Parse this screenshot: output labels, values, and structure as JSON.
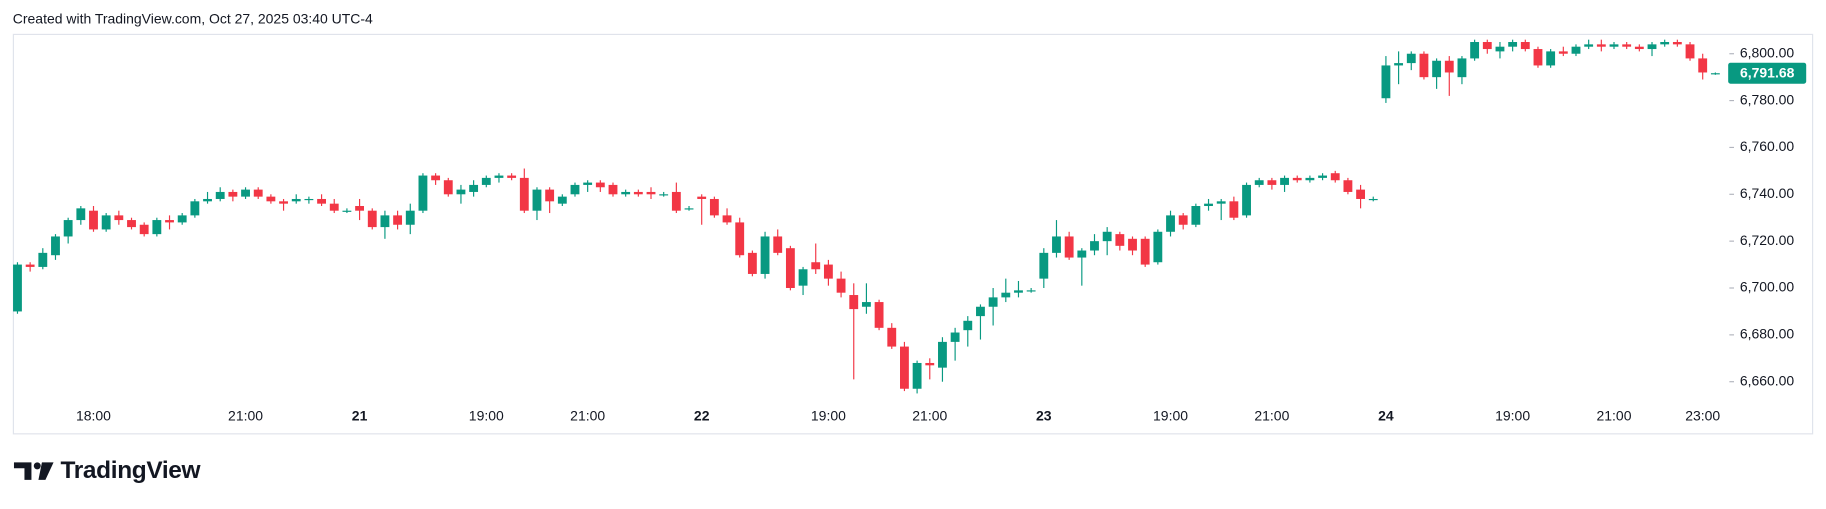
{
  "header": "Created with TradingView.com, Oct 27, 2025 03:40 UTC-4",
  "brand": "TradingView",
  "chart_data": {
    "type": "candlestick",
    "up_color": "#089981",
    "down_color": "#f23645",
    "categories": [
      null,
      null,
      null,
      null,
      null,
      null,
      "18:00",
      null,
      null,
      null,
      null,
      null,
      null,
      null,
      null,
      null,
      null,
      null,
      "21:00",
      null,
      null,
      null,
      null,
      null,
      null,
      null,
      null,
      "21",
      null,
      null,
      null,
      null,
      null,
      null,
      null,
      null,
      null,
      "19:00",
      null,
      null,
      null,
      null,
      null,
      null,
      null,
      "21:00",
      null,
      null,
      null,
      null,
      null,
      null,
      null,
      null,
      "22",
      null,
      null,
      null,
      null,
      null,
      null,
      null,
      null,
      null,
      "19:00",
      null,
      null,
      null,
      null,
      null,
      null,
      null,
      "21:00",
      null,
      null,
      null,
      null,
      null,
      null,
      null,
      null,
      "23",
      null,
      null,
      null,
      null,
      null,
      null,
      null,
      null,
      null,
      "19:00",
      null,
      null,
      null,
      null,
      null,
      null,
      null,
      "21:00",
      null,
      null,
      null,
      null,
      null,
      null,
      null,
      null,
      "24",
      null,
      null,
      null,
      null,
      null,
      null,
      null,
      null,
      null,
      "19:00",
      null,
      null,
      null,
      null,
      null,
      null,
      null,
      "21:00",
      null,
      null,
      null,
      null,
      null,
      null,
      "23:00",
      null
    ],
    "open": [
      6690,
      6710,
      6709,
      6714,
      6722,
      6729,
      6733,
      6725,
      6731,
      6729,
      6727,
      6723,
      6729,
      6728,
      6731,
      6737,
      6738,
      6741,
      6739,
      6742,
      6739,
      6737,
      6737,
      6738,
      6738,
      6736,
      6733,
      6735,
      6733,
      6726,
      6731,
      6727,
      6733,
      6748,
      6746,
      6740,
      6741,
      6744,
      6747,
      6748,
      6747,
      6733,
      6742,
      6736,
      6740,
      6744,
      6745,
      6744,
      6740,
      6741,
      6741,
      6740,
      6741,
      6734,
      6739,
      6738,
      6731,
      6728,
      6715,
      6706,
      6722,
      6717,
      6701,
      6711,
      6710,
      6704,
      6697,
      6692,
      6694,
      6683,
      6675,
      6657,
      6668,
      6666,
      6677,
      6682,
      6688,
      6692,
      6696,
      6698,
      6699,
      6704,
      6715,
      6722,
      6713,
      6716,
      6720,
      6723,
      6721,
      6721,
      6711,
      6724,
      6731,
      6727,
      6735,
      6736,
      6737,
      6731,
      6744,
      6746,
      6744,
      6747,
      6746,
      6747,
      6749,
      6746,
      6742,
      6738,
      6781,
      6795,
      6796,
      6800,
      6790,
      6797,
      6790,
      6798,
      6805,
      6801,
      6803,
      6805,
      6802,
      6795,
      6801,
      6800,
      6803,
      6804,
      6803,
      6804,
      6803,
      6802,
      6804,
      6805,
      6804,
      6798,
      6791.68
    ],
    "high": [
      6711,
      6711,
      6717,
      6723,
      6730,
      6735,
      6735,
      6732,
      6733,
      6730,
      6728,
      6730,
      6731,
      6732,
      6738,
      6741,
      6743,
      6742,
      6743,
      6743,
      6740,
      6738,
      6740,
      6739,
      6740,
      6738,
      6734,
      6738,
      6734,
      6733,
      6733,
      6736,
      6749,
      6749,
      6747,
      6744,
      6746,
      6748,
      6749,
      6749,
      6751,
      6743,
      6743,
      6740,
      6745,
      6746,
      6746,
      6745,
      6742,
      6742,
      6743,
      6741,
      6745,
      6735,
      6740,
      6739,
      6734,
      6730,
      6716,
      6724,
      6725,
      6718,
      6709,
      6719,
      6712,
      6707,
      6702,
      6702,
      6695,
      6685,
      6677,
      6669,
      6670,
      6679,
      6683,
      6688,
      6693,
      6700,
      6704,
      6703,
      6700,
      6717,
      6729,
      6724,
      6717,
      6723,
      6726,
      6724,
      6722,
      6722,
      6725,
      6733,
      6732,
      6736,
      6738,
      6738,
      6739,
      6745,
      6747,
      6747,
      6748,
      6748,
      6748,
      6749,
      6750,
      6747,
      6744,
      6739,
      6799,
      6801,
      6801,
      6801,
      6798,
      6799,
      6799,
      6806,
      6806,
      6805,
      6806,
      6806,
      6803,
      6802,
      6803,
      6804,
      6806,
      6806,
      6805,
      6805,
      6804,
      6805,
      6806,
      6806,
      6805,
      6800,
      6792
    ],
    "low": [
      6689,
      6707,
      6708,
      6712,
      6719,
      6727,
      6724,
      6724,
      6727,
      6725,
      6722,
      6722,
      6725,
      6727,
      6730,
      6736,
      6737,
      6737,
      6738,
      6738,
      6736,
      6733,
      6736,
      6736,
      6735,
      6732,
      6732,
      6729,
      6725,
      6721,
      6725,
      6723,
      6732,
      6744,
      6739,
      6736,
      6739,
      6743,
      6745,
      6746,
      6732,
      6729,
      6732,
      6735,
      6739,
      6741,
      6741,
      6739,
      6739,
      6739,
      6738,
      6739,
      6732,
      6733,
      6727,
      6730,
      6727,
      6713,
      6705,
      6704,
      6714,
      6699,
      6697,
      6706,
      6701,
      6696,
      6661,
      6689,
      6682,
      6674,
      6656,
      6655,
      6661,
      6660,
      6669,
      6675,
      6678,
      6684,
      6694,
      6696,
      6698,
      6700,
      6713,
      6712,
      6701,
      6714,
      6714,
      6716,
      6714,
      6709,
      6710,
      6722,
      6725,
      6726,
      6733,
      6729,
      6729,
      6730,
      6743,
      6742,
      6741,
      6745,
      6745,
      6746,
      6745,
      6740,
      6734,
      6737,
      6779,
      6787,
      6793,
      6789,
      6785,
      6782,
      6787,
      6797,
      6800,
      6798,
      6801,
      6801,
      6794,
      6794,
      6799,
      6799,
      6802,
      6801,
      6802,
      6802,
      6801,
      6799,
      6803,
      6803,
      6797,
      6789,
      6791
    ],
    "close": [
      6710,
      6709,
      6715,
      6722,
      6729,
      6734,
      6725,
      6731,
      6729,
      6726,
      6723,
      6729,
      6728,
      6731,
      6737,
      6738,
      6741,
      6739,
      6742,
      6739,
      6737,
      6736,
      6738,
      6738,
      6736,
      6733,
      6733,
      6733,
      6726,
      6731,
      6727,
      6733,
      6748,
      6746,
      6740,
      6742,
      6744,
      6747,
      6748,
      6747,
      6733,
      6742,
      6737,
      6739,
      6744,
      6745,
      6743,
      6740,
      6741,
      6740,
      6740,
      6740,
      6733,
      6734,
      6738,
      6731,
      6728,
      6714,
      6706,
      6722,
      6715,
      6700,
      6708,
      6708,
      6704,
      6698,
      6691,
      6694,
      6683,
      6675,
      6657,
      6668,
      6667,
      6677,
      6681,
      6686,
      6692,
      6696,
      6698,
      6699,
      6699,
      6715,
      6722,
      6713,
      6716,
      6720,
      6724,
      6718,
      6716,
      6710,
      6724,
      6731,
      6727,
      6735,
      6736,
      6737,
      6730,
      6744,
      6746,
      6744,
      6747,
      6746,
      6747,
      6748,
      6746,
      6741,
      6738,
      6738,
      6795,
      6796,
      6800,
      6790,
      6797,
      6792,
      6798,
      6805,
      6802,
      6803,
      6805,
      6802,
      6795,
      6801,
      6800,
      6803,
      6804,
      6803,
      6804,
      6803,
      6802,
      6804,
      6805,
      6804,
      6798,
      6792,
      6791.68
    ],
    "ylim": [
      6638,
      6808
    ],
    "yticks": [
      {
        "value": 6660,
        "label": "6,660.00"
      },
      {
        "value": 6680,
        "label": "6,680.00"
      },
      {
        "value": 6700,
        "label": "6,700.00"
      },
      {
        "value": 6720,
        "label": "6,720.00"
      },
      {
        "value": 6740,
        "label": "6,740.00"
      },
      {
        "value": 6760,
        "label": "6,760.00"
      },
      {
        "value": 6780,
        "label": "6,780.00"
      },
      {
        "value": 6800,
        "label": "6,800.00"
      }
    ],
    "last_price": {
      "value": 6791.68,
      "label": "6,791.68"
    }
  }
}
